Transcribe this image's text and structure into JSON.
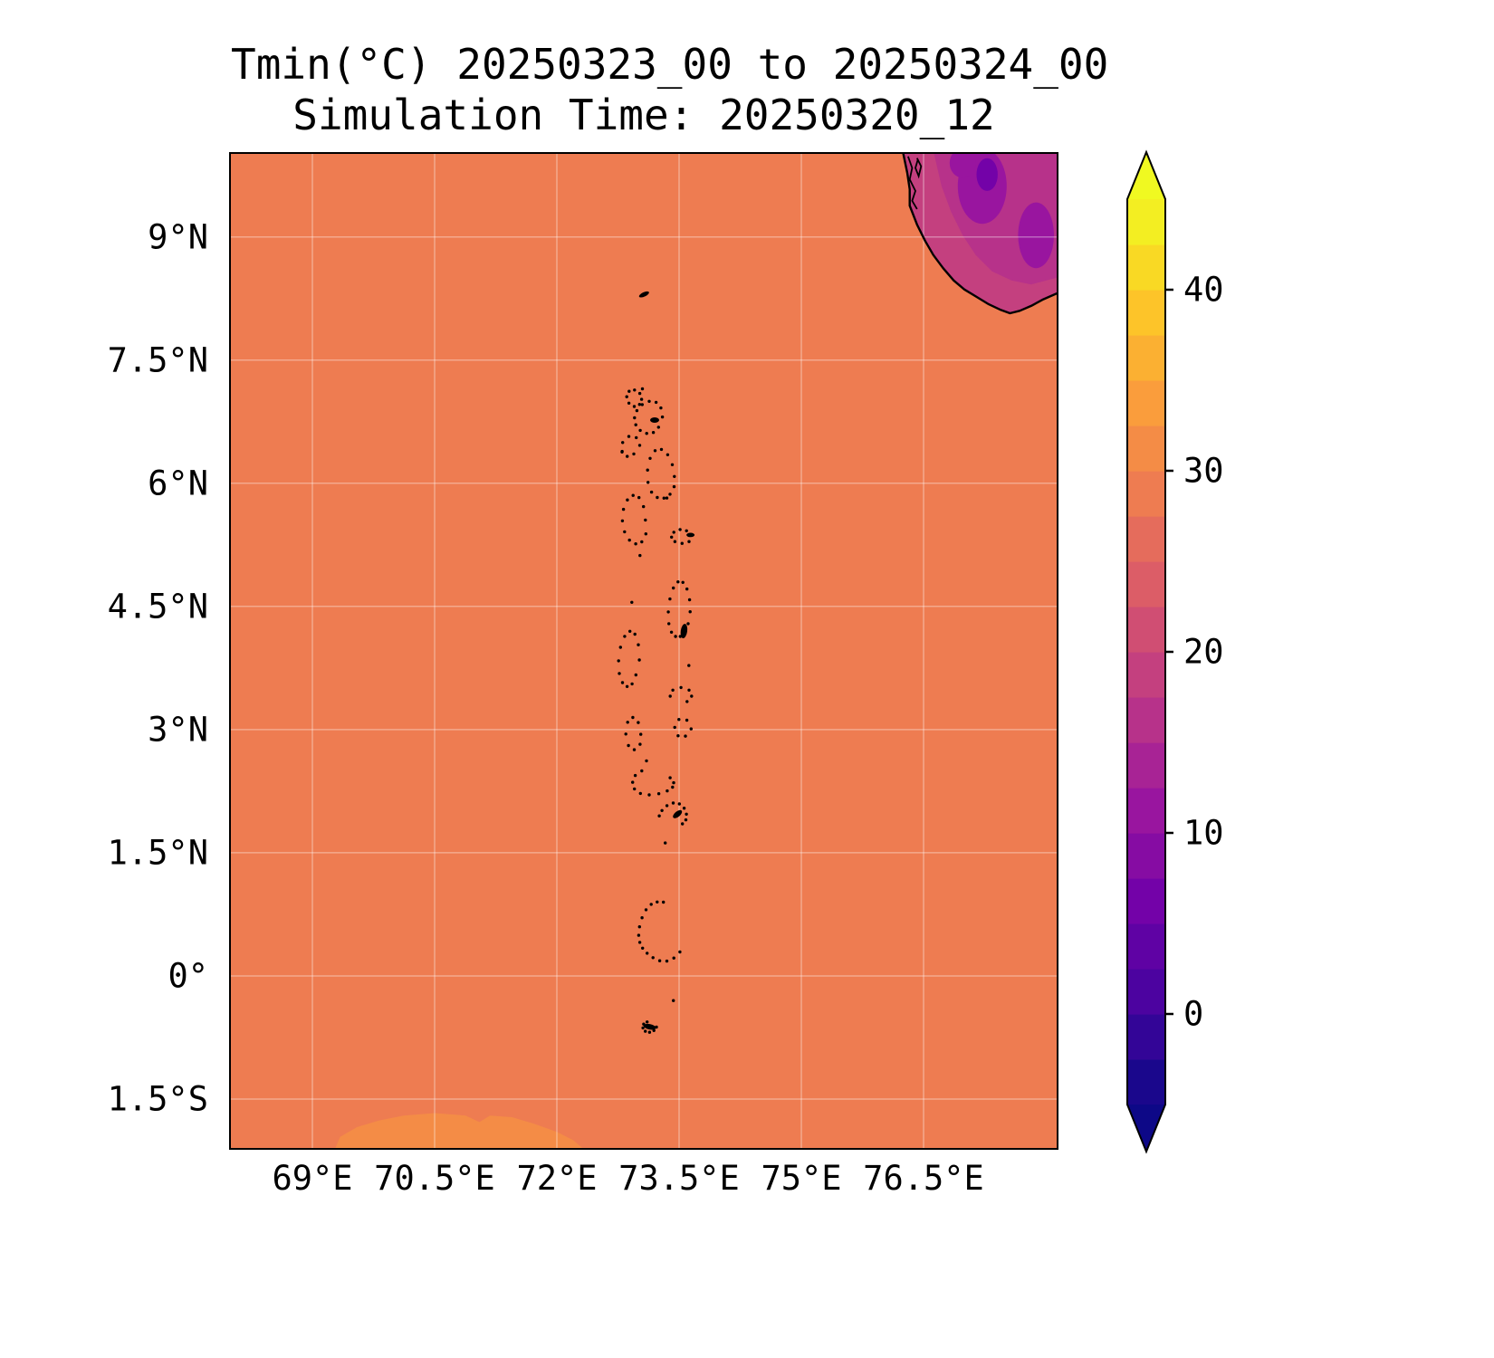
{
  "chart_data": {
    "type": "heatmap",
    "title": "Tmin(°C) 20250323_00 to 20250324_00",
    "subtitle": "Simulation Time: 20250320_12",
    "variable": "Tmin",
    "units": "°C",
    "valid_period": "20250323_00 to 20250324_00",
    "simulation_time": "20250320_12",
    "lon_range": [
      68.0,
      78.133
    ],
    "lat_range": [
      -2.095,
      10.011
    ],
    "grid_on": true,
    "grid_color": "rgba(255,255,255,0.35)",
    "xticks": [
      {
        "lon": 69.0,
        "label": "69°E"
      },
      {
        "lon": 70.5,
        "label": "70.5°E"
      },
      {
        "lon": 72.0,
        "label": "72°E"
      },
      {
        "lon": 73.5,
        "label": "73.5°E"
      },
      {
        "lon": 75.0,
        "label": "75°E"
      },
      {
        "lon": 76.5,
        "label": "76.5°E"
      }
    ],
    "yticks": [
      {
        "lat": 9.0,
        "label": "9°N"
      },
      {
        "lat": 7.5,
        "label": "7.5°N"
      },
      {
        "lat": 6.0,
        "label": "6°N"
      },
      {
        "lat": 4.5,
        "label": "4.5°N"
      },
      {
        "lat": 3.0,
        "label": "3°N"
      },
      {
        "lat": 1.5,
        "label": "1.5°N"
      },
      {
        "lat": 0.0,
        "label": "0°"
      },
      {
        "lat": -1.5,
        "label": "1.5°S"
      }
    ],
    "colorbar": {
      "orientation": "vertical",
      "position": "right",
      "levels_min": -5,
      "levels_max": 45,
      "band_step": 2.5,
      "ticks": [
        {
          "value": 40,
          "label": "40"
        },
        {
          "value": 30,
          "label": "30"
        },
        {
          "value": 20,
          "label": "20"
        },
        {
          "value": 10,
          "label": "10"
        },
        {
          "value": 0,
          "label": "0"
        }
      ],
      "band_colors": [
        "#1a078c",
        "#330597",
        "#4c03a0",
        "#5f02a4",
        "#7302a8",
        "#860ca3",
        "#99159f",
        "#a82395",
        "#b7328a",
        "#c4407f",
        "#d04e73",
        "#dc5d67",
        "#e56c5c",
        "#ee7c51",
        "#f48c46",
        "#fa9d3c",
        "#fbb032",
        "#fdc429",
        "#f9d924",
        "#f3ee22"
      ],
      "under_color": "#0d0887",
      "over_color": "#f0f921"
    },
    "field": {
      "ocean_color": "#ee7c51",
      "warm_patch_color": "#f48c46",
      "land_outer_color": "#c4407f",
      "land_mid_color": "#b7328a",
      "land_cool_color": "#99159f",
      "land_core_color": "#7302a8",
      "coastline_color": "#000000"
    },
    "field_regions": [
      {
        "region": "ocean (most of domain)",
        "approx_value_c": 28
      },
      {
        "region": "southern India / Western Ghats (top-right corner)",
        "approx_value_c": "10-20"
      },
      {
        "region": "patch along southern edge (~69.3-72.3°E, south of 1.7°S)",
        "approx_value_c": "30-32"
      }
    ],
    "features": {
      "india": {
        "coast": [
          [
            76.25,
            10.02
          ],
          [
            76.3,
            9.78
          ],
          [
            76.33,
            9.58
          ],
          [
            76.33,
            9.38
          ],
          [
            76.42,
            9.15
          ],
          [
            76.52,
            8.95
          ],
          [
            76.62,
            8.78
          ],
          [
            76.74,
            8.62
          ],
          [
            76.87,
            8.47
          ],
          [
            77.0,
            8.36
          ],
          [
            77.15,
            8.27
          ],
          [
            77.3,
            8.18
          ],
          [
            77.45,
            8.11
          ],
          [
            77.56,
            8.07
          ],
          [
            77.68,
            8.1
          ],
          [
            77.82,
            8.16
          ],
          [
            77.97,
            8.24
          ],
          [
            78.2,
            8.34
          ]
        ],
        "inland_shade": [
          [
            76.62,
            10.05
          ],
          [
            76.72,
            9.62
          ],
          [
            76.84,
            9.3
          ],
          [
            76.98,
            9.02
          ],
          [
            77.14,
            8.78
          ],
          [
            77.34,
            8.58
          ],
          [
            77.58,
            8.47
          ],
          [
            77.82,
            8.42
          ],
          [
            78.2,
            8.52
          ],
          [
            78.2,
            10.05
          ]
        ],
        "ghats_blobs": [
          {
            "c": [
              77.22,
              9.62
            ],
            "rx": 0.3,
            "ry": 0.46
          },
          {
            "c": [
              77.88,
              9.02
            ],
            "rx": 0.22,
            "ry": 0.4
          },
          {
            "c": [
              76.98,
              9.9
            ],
            "rx": 0.16,
            "ry": 0.18
          }
        ],
        "ghats_core": [
          {
            "c": [
              77.28,
              9.76
            ],
            "rx": 0.13,
            "ry": 0.2
          }
        ],
        "lagoons": [
          [
            [
              76.31,
              9.98
            ],
            [
              76.36,
              9.84
            ],
            [
              76.33,
              9.7
            ],
            [
              76.4,
              9.56
            ],
            [
              76.36,
              9.44
            ],
            [
              76.42,
              9.34
            ]
          ],
          [
            [
              76.42,
              9.96
            ],
            [
              76.47,
              9.86
            ],
            [
              76.44,
              9.74
            ],
            [
              76.4,
              9.84
            ],
            [
              76.43,
              9.94
            ]
          ]
        ]
      },
      "warm_patch": [
        [
          69.28,
          -2.1
        ],
        [
          69.34,
          -1.96
        ],
        [
          69.55,
          -1.84
        ],
        [
          69.82,
          -1.76
        ],
        [
          70.12,
          -1.7
        ],
        [
          70.5,
          -1.67
        ],
        [
          70.88,
          -1.7
        ],
        [
          71.05,
          -1.78
        ],
        [
          71.18,
          -1.7
        ],
        [
          71.45,
          -1.72
        ],
        [
          71.72,
          -1.8
        ],
        [
          72.0,
          -1.9
        ],
        [
          72.2,
          -2.0
        ],
        [
          72.32,
          -2.1
        ]
      ],
      "atolls": {
        "rings": [
          {
            "name": "ihavandhippolhu",
            "c": [
              72.94,
              7.04
            ],
            "rx": 0.1,
            "ry": 0.09,
            "n": 8,
            "a0": 0,
            "a1": 360
          },
          {
            "name": "thiladhunmathi",
            "c": [
              73.12,
              6.8
            ],
            "rx": 0.16,
            "ry": 0.2,
            "n": 12,
            "a0": 0,
            "a1": 360
          },
          {
            "name": "makunudhoo",
            "c": [
              72.9,
              6.45
            ],
            "rx": 0.1,
            "ry": 0.14,
            "n": 7,
            "a0": 0,
            "a1": 360
          },
          {
            "name": "miladhunmadulu",
            "c": [
              73.28,
              6.1
            ],
            "rx": 0.16,
            "ry": 0.3,
            "n": 13,
            "a0": 0,
            "a1": 360
          },
          {
            "name": "raa-baa",
            "c": [
              72.95,
              5.55
            ],
            "rx": 0.15,
            "ry": 0.3,
            "n": 12,
            "a0": 0,
            "a1": 360
          },
          {
            "name": "lhaviyani",
            "c": [
              73.52,
              5.35
            ],
            "rx": 0.12,
            "ry": 0.1,
            "n": 8,
            "a0": 0,
            "a1": 360
          },
          {
            "name": "kaafu-male",
            "c": [
              73.5,
              4.45
            ],
            "rx": 0.14,
            "ry": 0.34,
            "n": 14,
            "a0": 0,
            "a1": 360
          },
          {
            "name": "ari",
            "c": [
              72.88,
              3.85
            ],
            "rx": 0.12,
            "ry": 0.34,
            "n": 12,
            "a0": 0,
            "a1": 360
          },
          {
            "name": "vaavu",
            "c": [
              73.52,
              3.42
            ],
            "rx": 0.12,
            "ry": 0.11,
            "n": 6,
            "a0": -60,
            "a1": 240
          },
          {
            "name": "meemu",
            "c": [
              73.55,
              3.02
            ],
            "rx": 0.09,
            "ry": 0.13,
            "n": 6,
            "a0": 0,
            "a1": 360
          },
          {
            "name": "faafu-dhaalu",
            "c": [
              72.95,
              2.95
            ],
            "rx": 0.09,
            "ry": 0.18,
            "n": 8,
            "a0": 0,
            "a1": 360
          },
          {
            "name": "thaa",
            "c": [
              73.18,
              2.35
            ],
            "rx": 0.24,
            "ry": 0.15,
            "n": 11,
            "a0": 120,
            "a1": 420
          },
          {
            "name": "laamu",
            "c": [
              73.42,
              1.95
            ],
            "rx": 0.17,
            "ry": 0.14,
            "n": 9,
            "a0": -40,
            "a1": 200
          },
          {
            "name": "huvadhoo",
            "c": [
              73.3,
              0.55
            ],
            "rx": 0.3,
            "ry": 0.36,
            "n": 15,
            "a0": 90,
            "a1": 330
          },
          {
            "name": "addu",
            "c": [
              73.14,
              -0.62
            ],
            "rx": 0.1,
            "ry": 0.05,
            "n": 7,
            "a0": 120,
            "a1": 380
          }
        ],
        "dots": [
          [
            73.05,
            7.15
          ],
          [
            72.8,
            6.38
          ],
          [
            73.35,
            5.82
          ],
          [
            73.02,
            5.12
          ],
          [
            73.62,
            3.78
          ],
          [
            73.1,
            2.62
          ],
          [
            73.43,
            -0.3
          ],
          [
            73.33,
            1.62
          ],
          [
            72.92,
            4.55
          ]
        ],
        "blobs": [
          {
            "name": "minicoy",
            "c": [
              73.07,
              8.3
            ],
            "rx": 6.0,
            "ry": 2.4,
            "rot": -25
          },
          {
            "name": "thiladhunmathi",
            "c": [
              73.2,
              6.77
            ],
            "rx": 5.0,
            "ry": 3.0,
            "rot": 0
          },
          {
            "name": "lhaviyani-isle",
            "c": [
              73.64,
              5.37
            ],
            "rx": 4.5,
            "ry": 2.4,
            "rot": 0
          },
          {
            "name": "male-reef",
            "c": [
              73.56,
              4.2
            ],
            "rx": 3.6,
            "ry": 8.0,
            "rot": 8
          },
          {
            "name": "laamu-isle",
            "c": [
              73.48,
              1.97
            ],
            "rx": 6.0,
            "ry": 3.0,
            "rot": -40
          },
          {
            "name": "addu-isle",
            "c": [
              73.14,
              -0.62
            ],
            "rx": 7.0,
            "ry": 3.0,
            "rot": 12
          }
        ]
      }
    }
  }
}
